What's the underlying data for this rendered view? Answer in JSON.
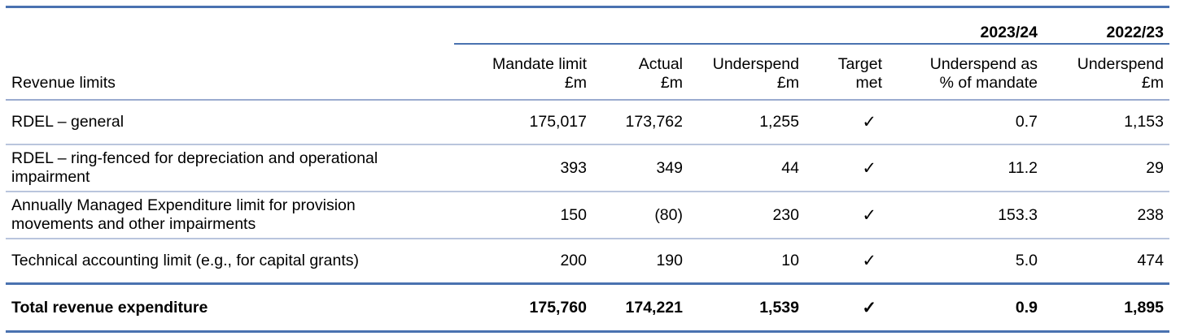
{
  "table": {
    "year_current": "2023/24",
    "year_previous": "2022/23",
    "headers": {
      "label": "Revenue limits",
      "mandate_1": "Mandate limit",
      "mandate_2": "£m",
      "actual_1": "Actual",
      "actual_2": "£m",
      "underspend_1": "Underspend",
      "underspend_2": "£m",
      "target_1": "Target",
      "target_2": "met",
      "pct_1": "Underspend as",
      "pct_2": "% of mandate",
      "prev_1": "Underspend",
      "prev_2": "£m"
    },
    "rows": [
      {
        "label": "RDEL – general",
        "mandate": "175,017",
        "actual": "173,762",
        "underspend": "1,255",
        "target": "✓",
        "pct": "0.7",
        "prev": "1,153"
      },
      {
        "label": "RDEL – ring-fenced for depreciation and operational impairment",
        "mandate": "393",
        "actual": "349",
        "underspend": "44",
        "target": "✓",
        "pct": "11.2",
        "prev": "29"
      },
      {
        "label": "Annually Managed Expenditure limit for provision movements and other impairments",
        "mandate": "150",
        "actual": "(80)",
        "underspend": "230",
        "target": "✓",
        "pct": "153.3",
        "prev": "238"
      },
      {
        "label": "Technical accounting limit (e.g., for capital grants)",
        "mandate": "200",
        "actual": "190",
        "underspend": "10",
        "target": "✓",
        "pct": "5.0",
        "prev": "474"
      }
    ],
    "total": {
      "label": "Total revenue expenditure",
      "mandate": "175,760",
      "actual": "174,221",
      "underspend": "1,539",
      "target": "✓",
      "pct": "0.9",
      "prev": "1,895"
    }
  }
}
